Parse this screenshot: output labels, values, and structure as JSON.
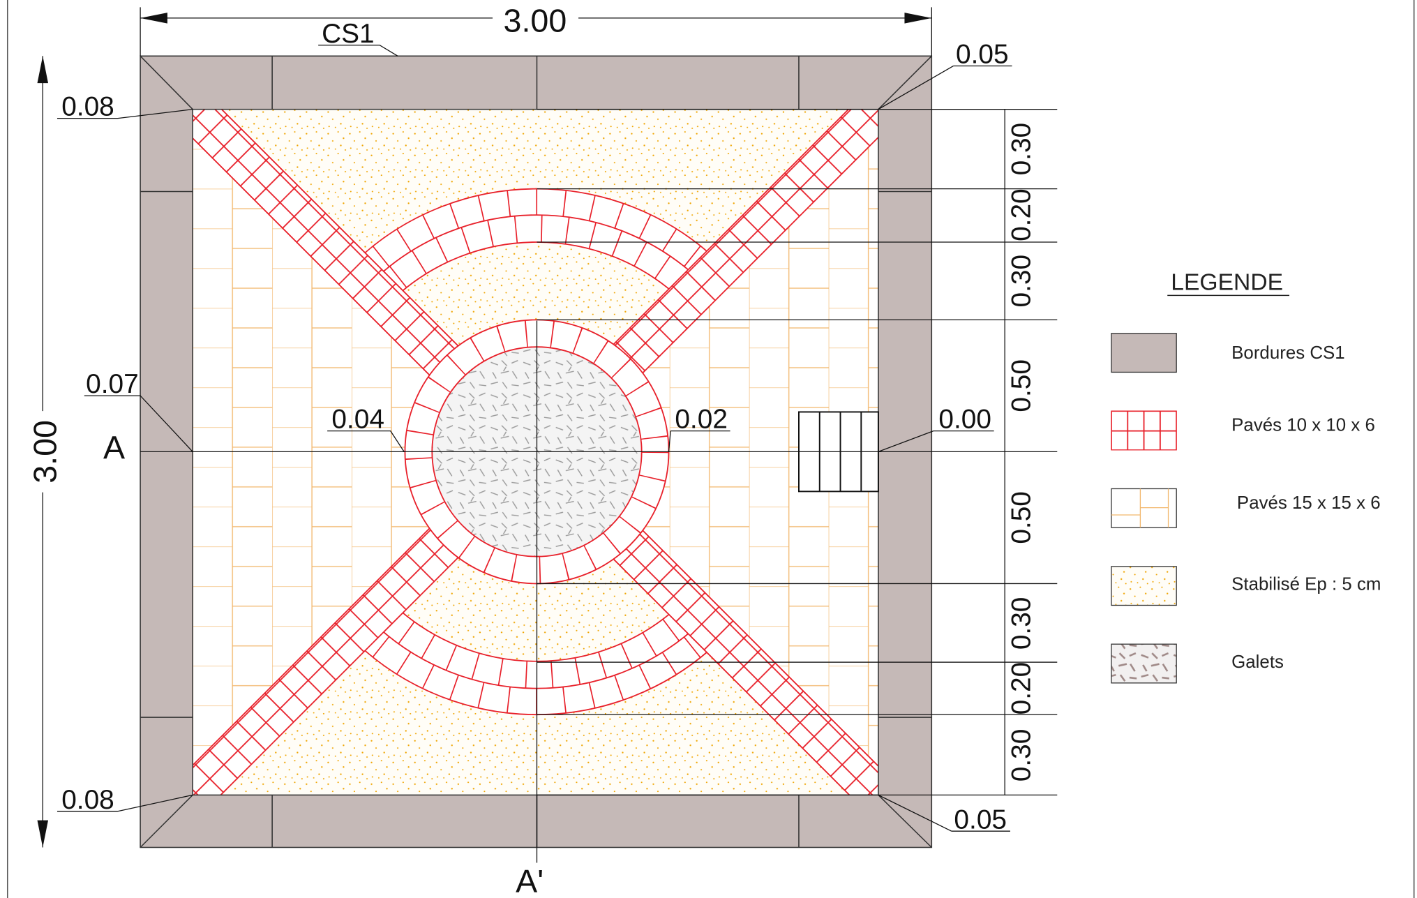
{
  "drawing": {
    "top_dimension": "3.00",
    "left_dimension": "3.00",
    "border_label": "CS1",
    "corner_labels": {
      "top_left": "0.08",
      "top_right": "0.05",
      "bottom_left": "0.08",
      "bottom_right": "0.05"
    },
    "offset_labels": {
      "left_edge": "0.07",
      "circle_left": "0.04",
      "circle_right": "0.02",
      "right_edge": "0.00"
    },
    "section_labels": {
      "start": "A",
      "end": "A'"
    },
    "right_dimensions": [
      "0.30",
      "0.20",
      "0.30",
      "0.50",
      "0.50",
      "0.30",
      "0.20",
      "0.30"
    ]
  },
  "legend": {
    "title": "LEGENDE",
    "items": [
      "Bordures CS1",
      "Pavés 10 x 10 x 6",
      "Pavés 15 x 15 x 6",
      "Stabilisé Ep : 5 cm",
      "Galets"
    ]
  }
}
